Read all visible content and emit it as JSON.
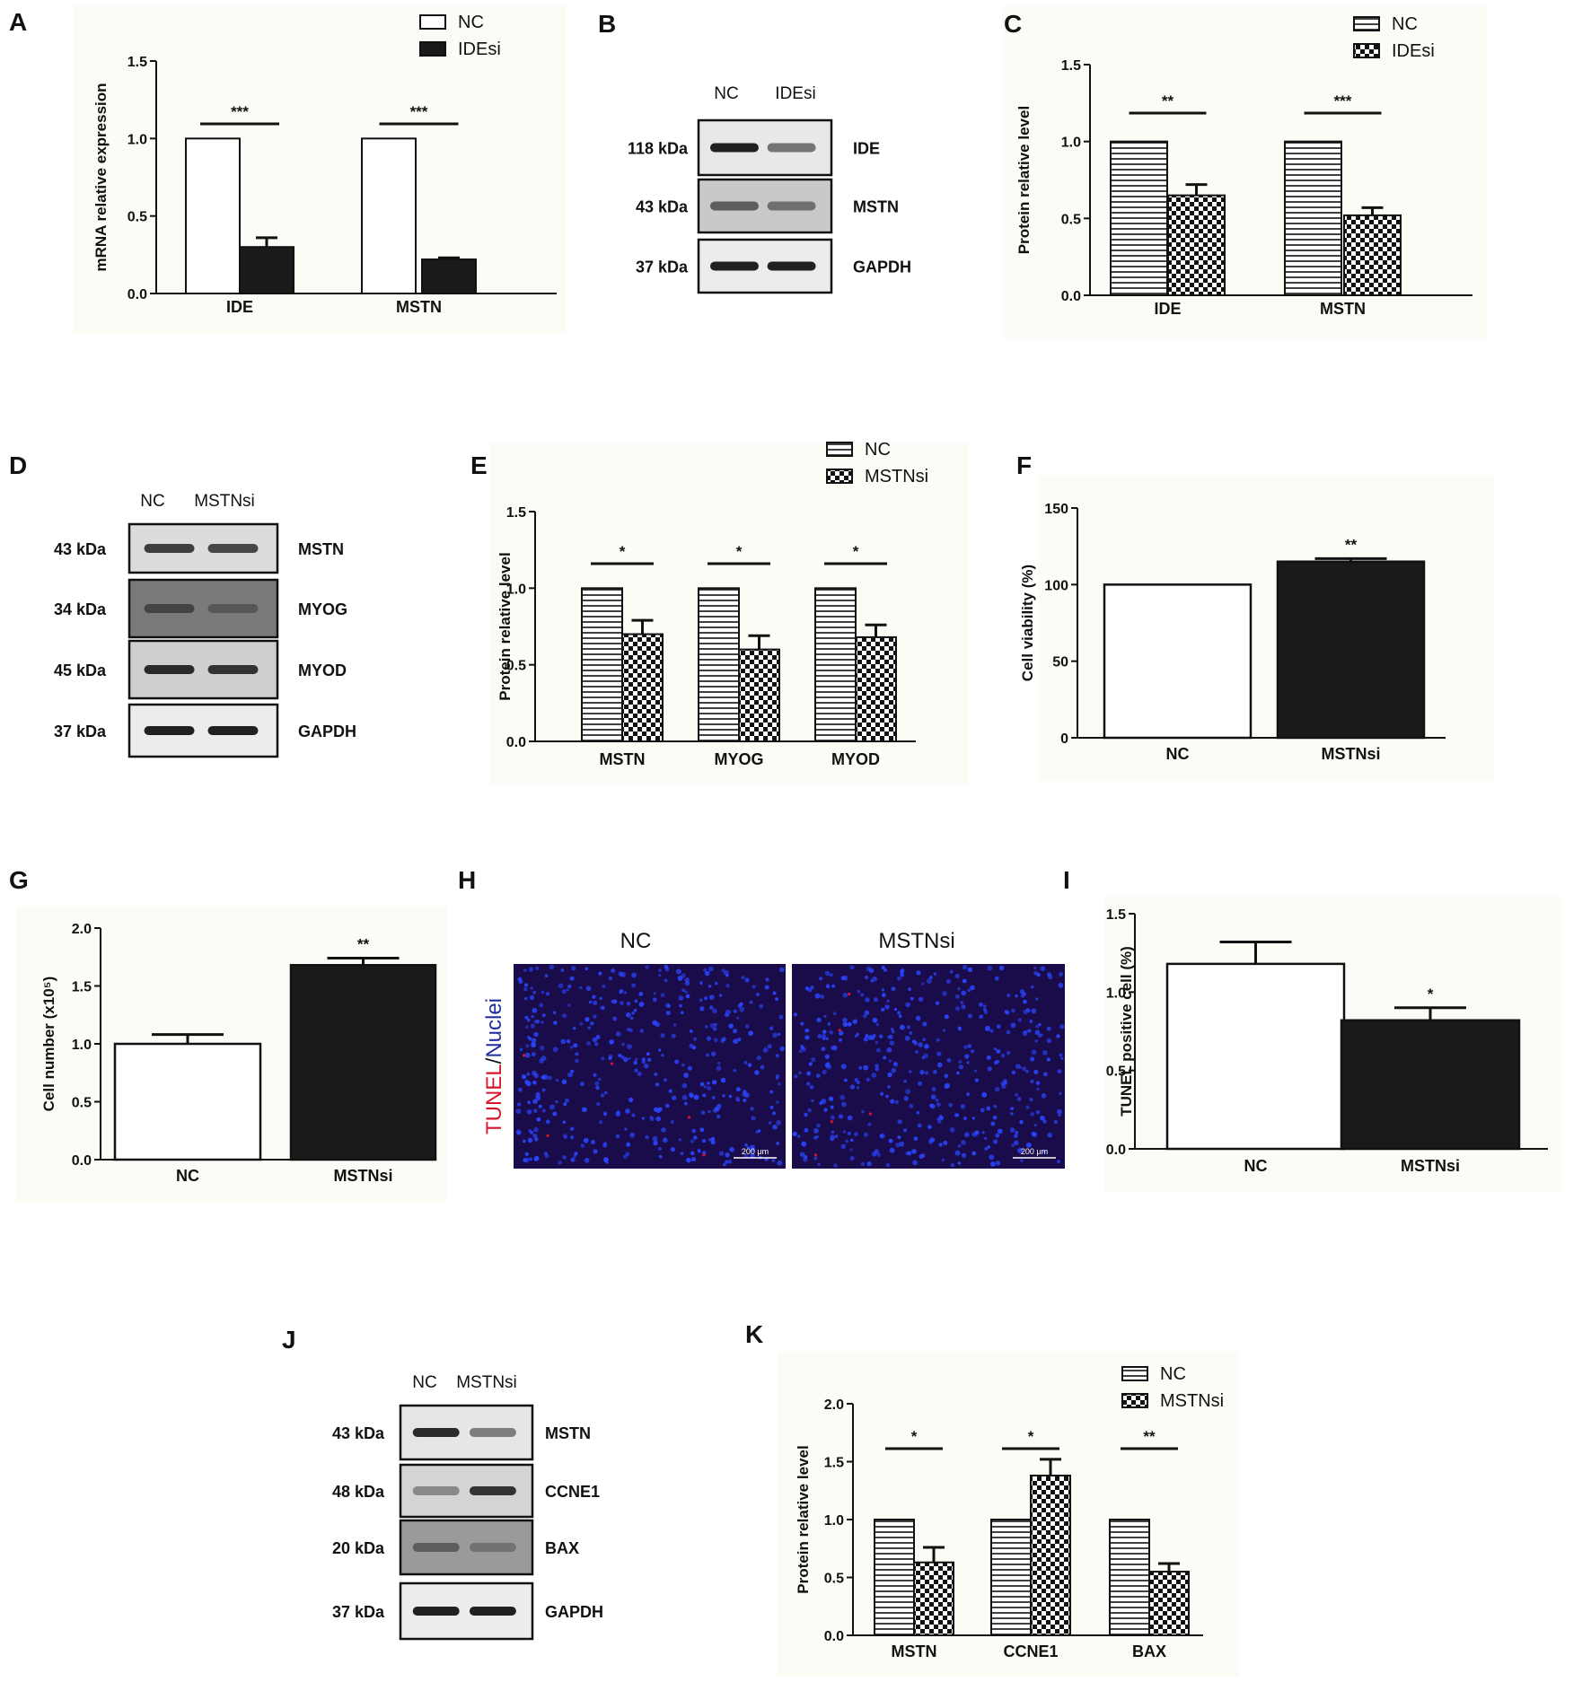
{
  "panels": [
    {
      "id": "A",
      "label": "A",
      "chart_data": {
        "type": "bar",
        "categories": [
          "IDE",
          "MSTN"
        ],
        "ylabel": "mRNA relative expression",
        "ylim": [
          0,
          1.5
        ],
        "yticks": [
          0.0,
          0.5,
          1.0,
          1.5
        ],
        "yticklabels": [
          "0.0",
          "0.5",
          "1.0",
          "1.5"
        ],
        "series": [
          {
            "name": "NC",
            "values": [
              1.0,
              1.0
            ],
            "errors": [
              0,
              0
            ],
            "fill": "white"
          },
          {
            "name": "IDEsi",
            "values": [
              0.3,
              0.22
            ],
            "errors": [
              0.06,
              0.01
            ],
            "fill": "black"
          }
        ],
        "significance": [
          "***",
          "***"
        ]
      }
    },
    {
      "id": "C",
      "label": "C",
      "chart_data": {
        "type": "bar",
        "categories": [
          "IDE",
          "MSTN"
        ],
        "ylabel": "Protein relative level",
        "ylim": [
          0,
          1.5
        ],
        "yticks": [
          0.0,
          0.5,
          1.0,
          1.5
        ],
        "yticklabels": [
          "0.0",
          "0.5",
          "1.0",
          "1.5"
        ],
        "series": [
          {
            "name": "NC",
            "values": [
              1.0,
              1.0
            ],
            "errors": [
              0,
              0
            ],
            "fill": "hstripe"
          },
          {
            "name": "IDEsi",
            "values": [
              0.65,
              0.52
            ],
            "errors": [
              0.07,
              0.05
            ],
            "fill": "checker"
          }
        ],
        "significance": [
          "**",
          "***"
        ]
      }
    },
    {
      "id": "E",
      "label": "E",
      "chart_data": {
        "type": "bar",
        "categories": [
          "MSTN",
          "MYOG",
          "MYOD"
        ],
        "ylabel": "Protein relative level",
        "ylim": [
          0,
          1.5
        ],
        "yticks": [
          0.0,
          0.5,
          1.0,
          1.5
        ],
        "yticklabels": [
          "0.0",
          "0.5",
          "1.0",
          "1.5"
        ],
        "series": [
          {
            "name": "NC",
            "values": [
              1.0,
              1.0,
              1.0
            ],
            "errors": [
              0,
              0,
              0
            ],
            "fill": "hstripe"
          },
          {
            "name": "MSTNsi",
            "values": [
              0.7,
              0.6,
              0.68
            ],
            "errors": [
              0.09,
              0.09,
              0.08
            ],
            "fill": "checker"
          }
        ],
        "significance": [
          "*",
          "*",
          "*"
        ]
      }
    },
    {
      "id": "F",
      "label": "F",
      "chart_data": {
        "type": "bar",
        "categories": [
          "NC",
          "MSTNsi"
        ],
        "ylabel": "Cell viability (%)",
        "ylim": [
          0,
          150
        ],
        "yticks": [
          0,
          50,
          100,
          150
        ],
        "yticklabels": [
          "0",
          "50",
          "100",
          "150"
        ],
        "values": [
          100,
          115
        ],
        "errors": [
          0,
          2
        ],
        "fills": [
          "white",
          "black"
        ],
        "significance": [
          "",
          "**"
        ]
      }
    },
    {
      "id": "G",
      "label": "G",
      "chart_data": {
        "type": "bar",
        "categories": [
          "NC",
          "MSTNsi"
        ],
        "ylabel": "Cell number (x10⁵)",
        "ylim": [
          0,
          2.0
        ],
        "yticks": [
          0.0,
          0.5,
          1.0,
          1.5,
          2.0
        ],
        "yticklabels": [
          "0.0",
          "0.5",
          "1.0",
          "1.5",
          "2.0"
        ],
        "values": [
          1.0,
          1.68
        ],
        "errors": [
          0.08,
          0.06
        ],
        "fills": [
          "white",
          "black"
        ],
        "significance": [
          "",
          "**"
        ]
      }
    },
    {
      "id": "I",
      "label": "I",
      "chart_data": {
        "type": "bar",
        "categories": [
          "NC",
          "MSTNsi"
        ],
        "ylabel": "TUNEL positive cell (%)",
        "ylim": [
          0,
          1.5
        ],
        "yticks": [
          0.0,
          0.5,
          1.0,
          1.5
        ],
        "yticklabels": [
          "0.0",
          "0.5",
          "1.0",
          "1.5"
        ],
        "values": [
          1.18,
          0.82
        ],
        "errors": [
          0.14,
          0.08
        ],
        "fills": [
          "white",
          "black"
        ],
        "significance": [
          "",
          "*"
        ]
      }
    },
    {
      "id": "K",
      "label": "K",
      "chart_data": {
        "type": "bar",
        "categories": [
          "MSTN",
          "CCNE1",
          "BAX"
        ],
        "ylabel": "Protein relative level",
        "ylim": [
          0,
          2.0
        ],
        "yticks": [
          0.0,
          0.5,
          1.0,
          1.5,
          2.0
        ],
        "yticklabels": [
          "0.0",
          "0.5",
          "1.0",
          "1.5",
          "2.0"
        ],
        "series": [
          {
            "name": "NC",
            "values": [
              1.0,
              1.0,
              1.0
            ],
            "errors": [
              0,
              0,
              0
            ],
            "fill": "hstripe"
          },
          {
            "name": "MSTNsi",
            "values": [
              0.63,
              1.38,
              0.55
            ],
            "errors": [
              0.13,
              0.14,
              0.07
            ],
            "fill": "checker"
          }
        ],
        "significance": [
          "*",
          "*",
          "**"
        ]
      }
    }
  ],
  "blots": [
    {
      "id": "B",
      "label": "B",
      "lanes": [
        "NC",
        "IDEsi"
      ],
      "rows": [
        {
          "kda": "118 kDa",
          "protein": "IDE",
          "bg": "#e8e8e8",
          "bands": [
            0.95,
            0.55
          ]
        },
        {
          "kda": "43 kDa",
          "protein": "MSTN",
          "bg": "#c9c9c9",
          "bands": [
            0.6,
            0.5
          ]
        },
        {
          "kda": "37 kDa",
          "protein": "GAPDH",
          "bg": "#ececec",
          "bands": [
            0.95,
            0.95
          ]
        }
      ]
    },
    {
      "id": "D",
      "label": "D",
      "lanes": [
        "NC",
        "MSTNsi"
      ],
      "rows": [
        {
          "kda": "43 kDa",
          "protein": "MSTN",
          "bg": "#dcdcdc",
          "bands": [
            0.8,
            0.75
          ]
        },
        {
          "kda": "34 kDa",
          "protein": "MYOG",
          "bg": "#7a7a7a",
          "bands": [
            0.55,
            0.35
          ]
        },
        {
          "kda": "45 kDa",
          "protein": "MYOD",
          "bg": "#cfcfcf",
          "bands": [
            0.9,
            0.85
          ]
        },
        {
          "kda": "37 kDa",
          "protein": "GAPDH",
          "bg": "#ececec",
          "bands": [
            0.95,
            0.95
          ]
        }
      ]
    },
    {
      "id": "J",
      "label": "J",
      "lanes": [
        "NC",
        "MSTNsi"
      ],
      "rows": [
        {
          "kda": "43 kDa",
          "protein": "MSTN",
          "bg": "#e6e6e6",
          "bands": [
            0.9,
            0.5
          ]
        },
        {
          "kda": "48 kDa",
          "protein": "CCNE1",
          "bg": "#d4d4d4",
          "bands": [
            0.4,
            0.85
          ]
        },
        {
          "kda": "20 kDa",
          "protein": "BAX",
          "bg": "#9a9a9a",
          "bands": [
            0.45,
            0.3
          ]
        },
        {
          "kda": "37 kDa",
          "protein": "GAPDH",
          "bg": "#ececec",
          "bands": [
            0.95,
            0.95
          ]
        }
      ]
    }
  ],
  "micro": {
    "id": "H",
    "label": "H",
    "columns": [
      "NC",
      "MSTNsi"
    ],
    "stain_red": "TUNEL",
    "stain_sep": "/",
    "stain_blue": "Nuclei",
    "scale": "200 μm",
    "colors": {
      "red": "#d6142a",
      "blue": "#1f2f9e",
      "background": "#1a0b4a",
      "nucleus": "#2a46ff"
    }
  }
}
